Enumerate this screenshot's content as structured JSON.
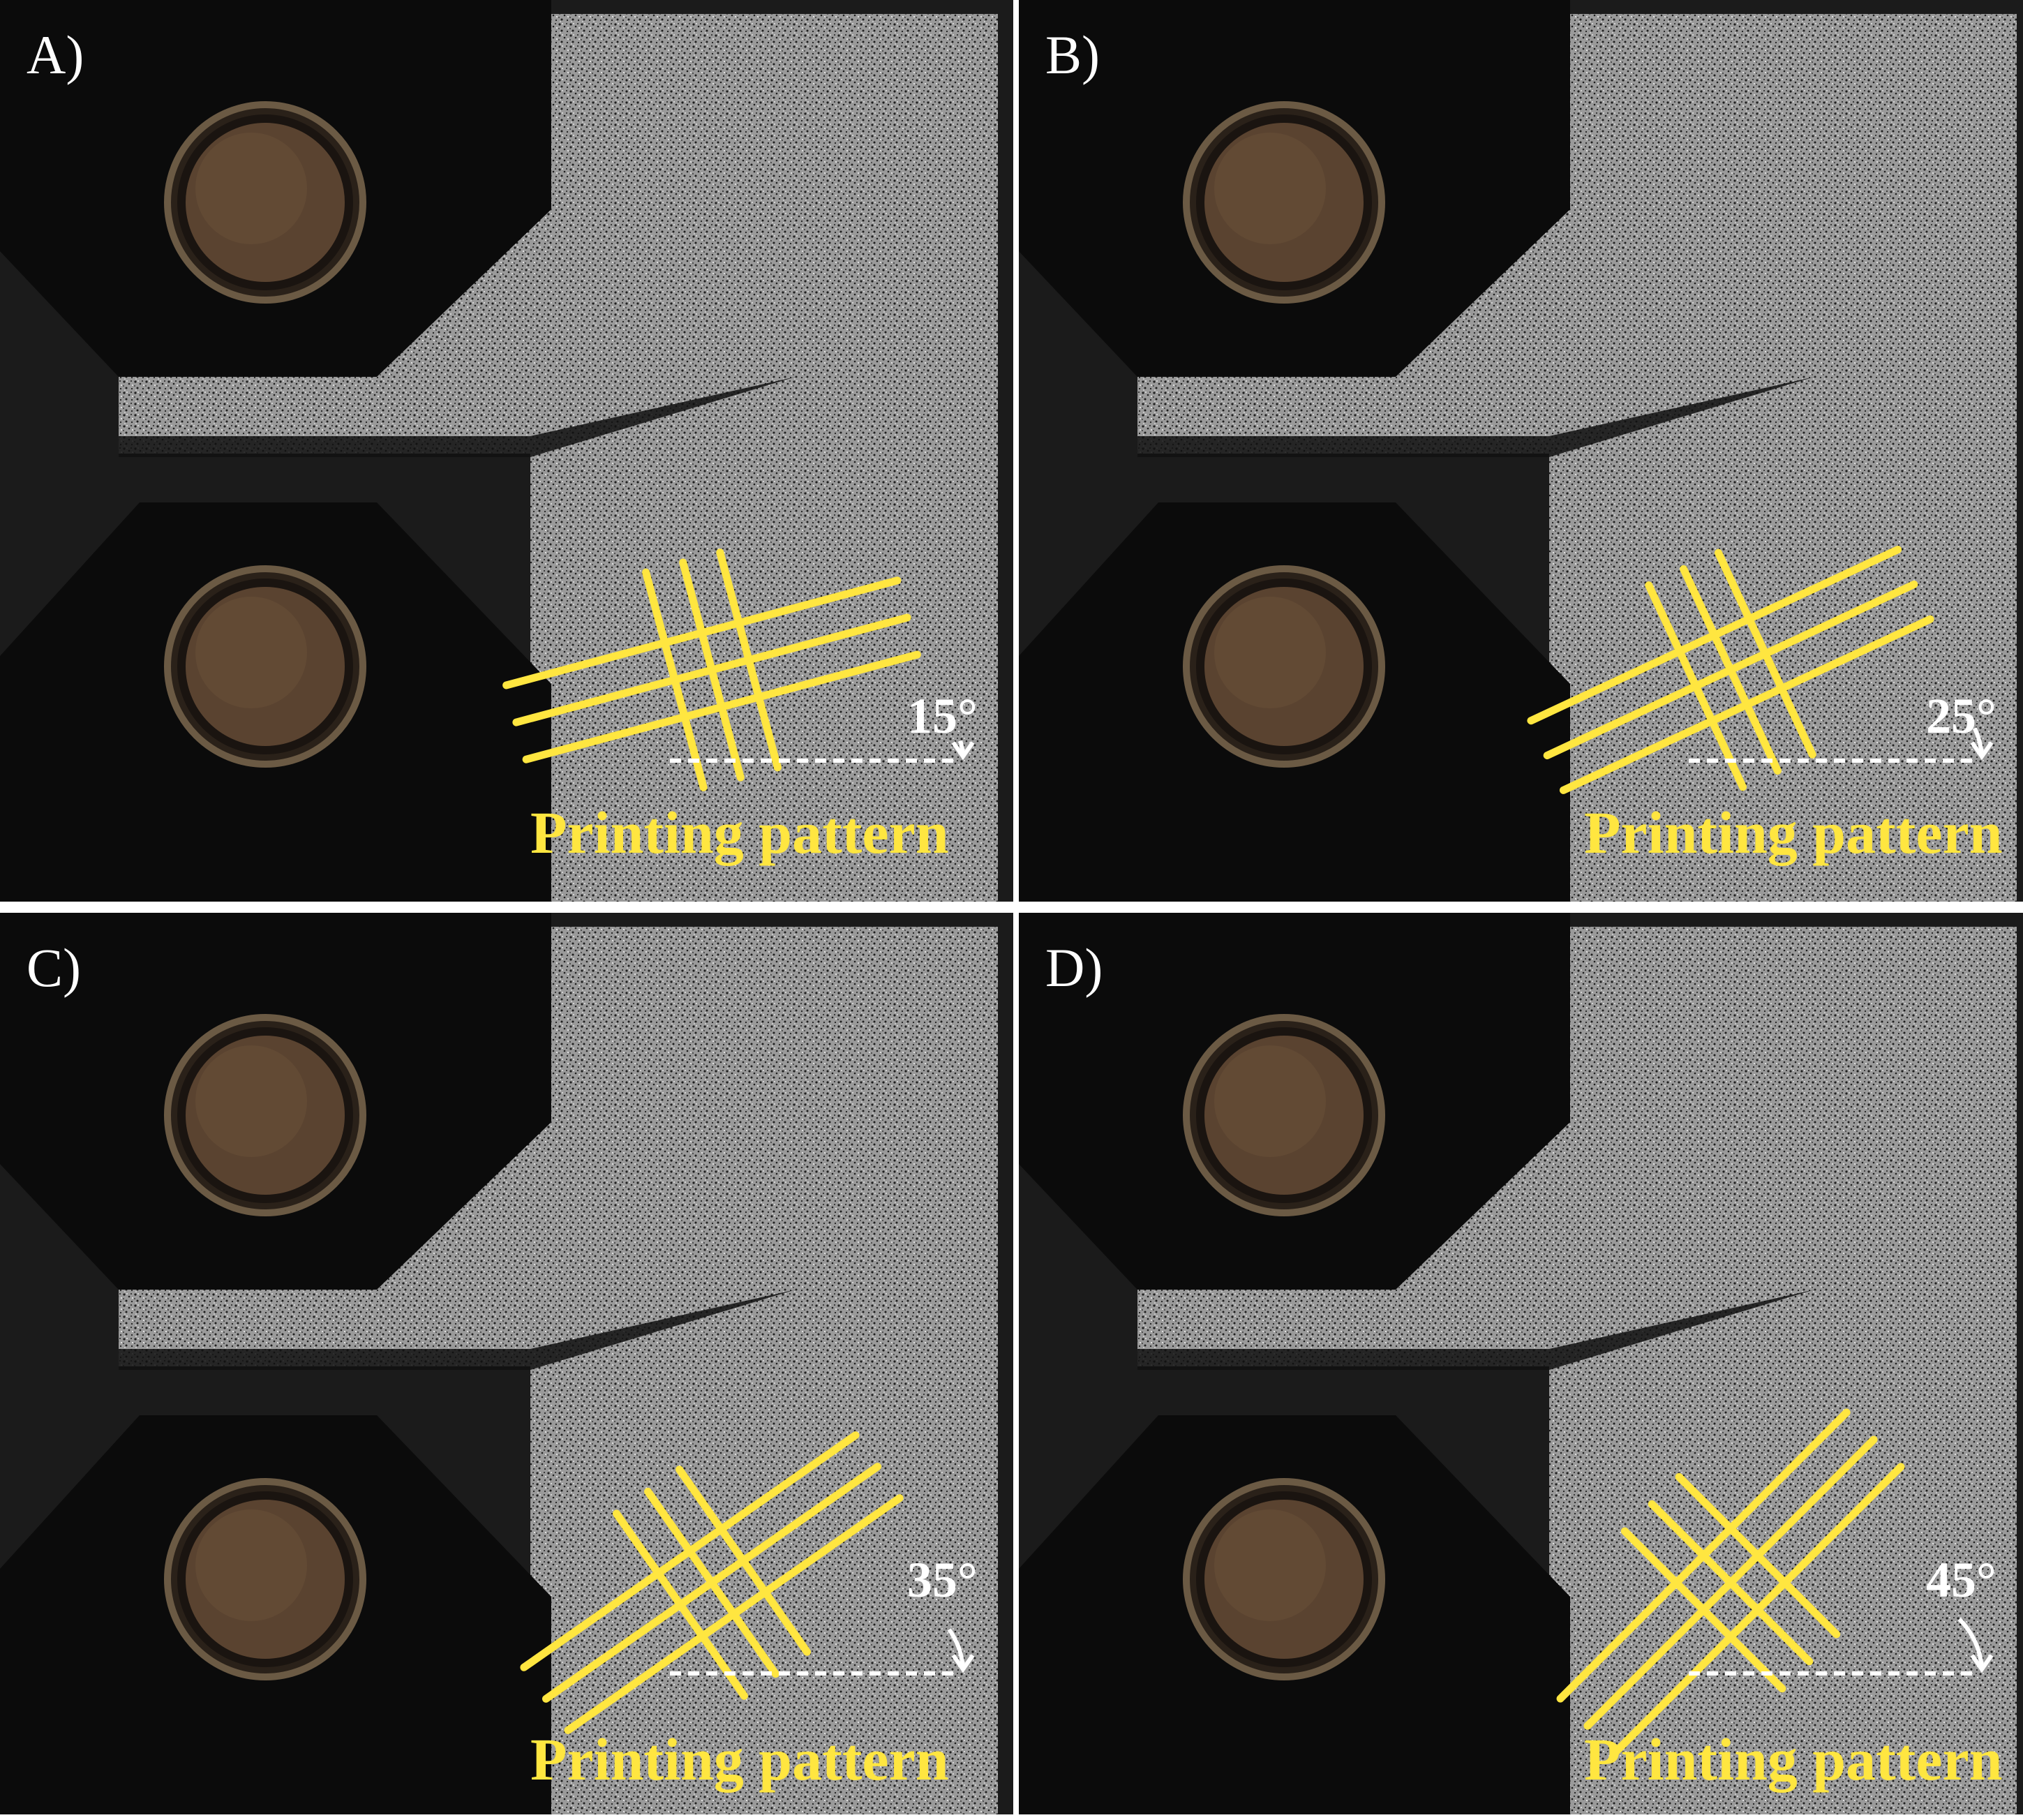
{
  "colors": {
    "pattern": "#ffe640",
    "background_dark": "#1b1b1b",
    "fixture": "#0b0b0b",
    "specimen": "#9a9a9a",
    "pin": "#5a4330",
    "divider": "#ffffff"
  },
  "panels": [
    {
      "id": "A",
      "label": "A)",
      "angle_label": "15°",
      "angle": 15,
      "caption": "Printing pattern"
    },
    {
      "id": "B",
      "label": "B)",
      "angle_label": "25°",
      "angle": 25,
      "caption": "Printing pattern"
    },
    {
      "id": "C",
      "label": "C)",
      "angle_label": "35°",
      "angle": 35,
      "caption": "Printing pattern"
    },
    {
      "id": "D",
      "label": "D)",
      "angle_label": "45°",
      "angle": 45,
      "caption": "Printing pattern"
    }
  ]
}
